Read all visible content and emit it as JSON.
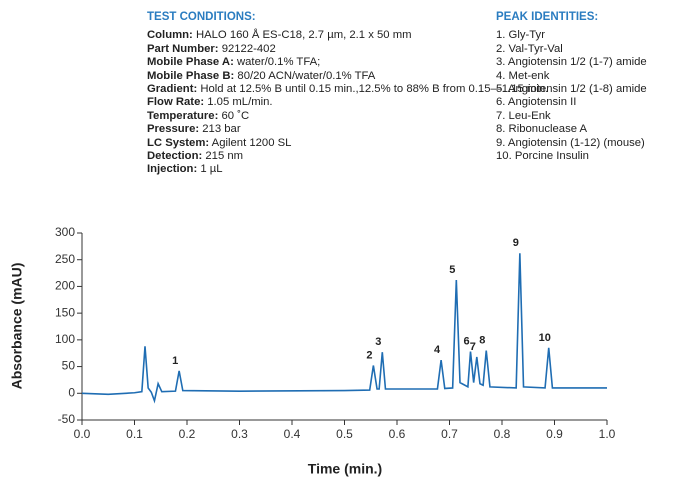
{
  "chart_data": {
    "type": "line",
    "conditions": {
      "heading": "TEST CONDITIONS:",
      "items": [
        {
          "key": "Column:",
          "value": "HALO 160 Å ES-C18, 2.7 µm,  2.1 x 50 mm"
        },
        {
          "key": "Part Number:",
          "value": "92122-402"
        },
        {
          "key": "Mobile Phase A:",
          "value": "water/0.1% TFA;"
        },
        {
          "key": "Mobile Phase B:",
          "value": "80/20 ACN/water/0.1% TFA"
        },
        {
          "key": "Gradient:",
          "value": "Hold at 12.5% B until 0.15 min.,12.5% to 88% B from 0.15—1.15 min."
        },
        {
          "key": "Flow Rate:",
          "value": "1.05 mL/min."
        },
        {
          "key": "Temperature:",
          "value": "60 ˚C"
        },
        {
          "key": "Pressure:",
          "value": "213 bar"
        },
        {
          "key": "LC System:",
          "value": "Agilent 1200 SL"
        },
        {
          "key": "Detection:",
          "value": "215 nm"
        },
        {
          "key": "Injection:",
          "value": "1 µL"
        }
      ]
    },
    "identities": {
      "heading": "PEAK IDENTITIES:",
      "items": [
        "1. Gly-Tyr",
        "2. Val-Tyr-Val",
        "3. Angiotensin 1/2 (1-7) amide",
        "4. Met-enk",
        "5. Angiotensin 1/2 (1-8) amide",
        "6. Angiotensin II",
        "7. Leu-Enk",
        "8. Ribonuclease A",
        "9. Angiotensin (1-12) (mouse)",
        "10. Porcine Insulin"
      ]
    },
    "xlabel": "Time (min.)",
    "ylabel": "Absorbance (mAU)",
    "color": "#1f6db3",
    "x": [
      0,
      0.05,
      0.1,
      0.114,
      0.12,
      0.126,
      0.132,
      0.138,
      0.145,
      0.152,
      0.178,
      0.185,
      0.192,
      0.3,
      0.5,
      0.548,
      0.555,
      0.562,
      0.566,
      0.572,
      0.578,
      0.677,
      0.684,
      0.691,
      0.706,
      0.713,
      0.72,
      0.735,
      0.74,
      0.746,
      0.752,
      0.758,
      0.764,
      0.77,
      0.777,
      0.827,
      0.834,
      0.841,
      0.882,
      0.889,
      0.896,
      1.0
    ],
    "values": [
      0,
      -2,
      1,
      3,
      88,
      10,
      2,
      -14,
      18,
      3,
      4,
      42,
      5,
      4,
      5,
      6,
      52,
      8,
      8,
      77,
      8,
      8,
      62,
      9,
      10,
      212,
      20,
      12,
      78,
      20,
      68,
      18,
      15,
      80,
      12,
      10,
      262,
      12,
      10,
      85,
      10,
      10
    ],
    "peaks": [
      {
        "label": "1",
        "x": 0.185,
        "y": 42
      },
      {
        "label": "2",
        "x": 0.555,
        "y": 52
      },
      {
        "label": "3",
        "x": 0.572,
        "y": 77
      },
      {
        "label": "4",
        "x": 0.684,
        "y": 62
      },
      {
        "label": "5",
        "x": 0.713,
        "y": 212
      },
      {
        "label": "6",
        "x": 0.74,
        "y": 78
      },
      {
        "label": "7",
        "x": 0.752,
        "y": 68
      },
      {
        "label": "8",
        "x": 0.77,
        "y": 80
      },
      {
        "label": "9",
        "x": 0.834,
        "y": 262
      },
      {
        "label": "10",
        "x": 0.889,
        "y": 85
      }
    ],
    "xlim": [
      0,
      1
    ],
    "ylim": [
      -50,
      300
    ],
    "xticks": [
      {
        "value": 0,
        "label": "0.0"
      },
      0.1,
      0.2,
      0.3,
      0.4,
      0.5,
      0.6,
      0.7,
      0.8,
      0.9,
      {
        "value": 1,
        "label": "1.0"
      }
    ],
    "yticks": [
      -50,
      0,
      50,
      100,
      150,
      200,
      250,
      300
    ],
    "grid": false
  }
}
